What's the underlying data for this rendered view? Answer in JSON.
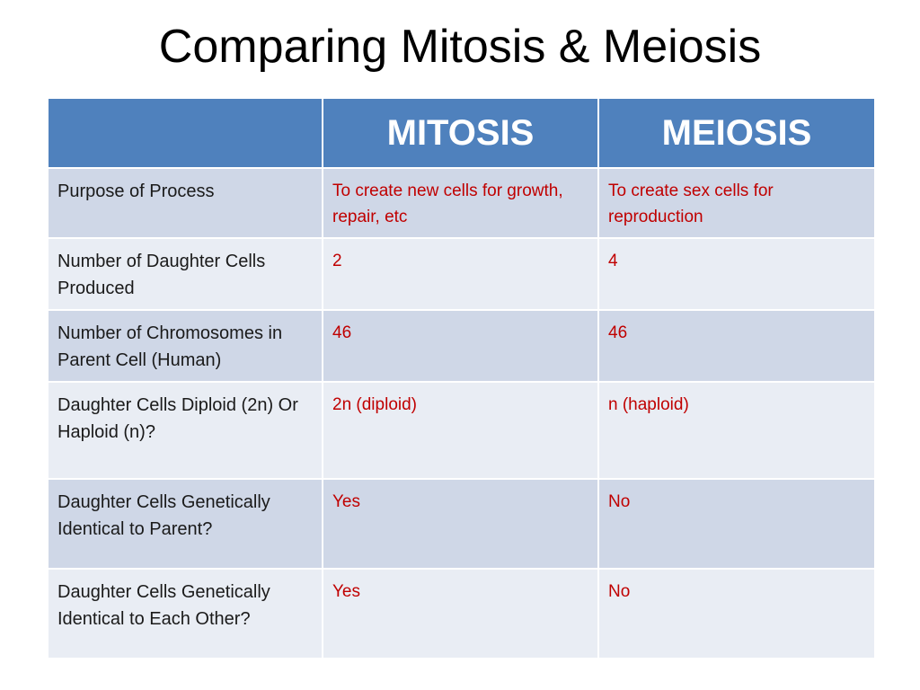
{
  "title": "Comparing Mitosis & Meiosis",
  "table": {
    "headers": [
      "",
      "MITOSIS",
      "MEIOSIS"
    ],
    "rows": [
      {
        "label": "Purpose of Process",
        "mitosis": "To create new cells for growth, repair, etc",
        "meiosis": "To create sex cells for reproduction"
      },
      {
        "label": "Number of Daughter Cells Produced",
        "mitosis": "2",
        "meiosis": "4"
      },
      {
        "label": "Number of Chromosomes in Parent Cell (Human)",
        "mitosis": "46",
        "meiosis": "46"
      },
      {
        "label": "Daughter Cells Diploid (2n) Or Haploid (n)?",
        "mitosis": "2n (diploid)",
        "meiosis": "n (haploid)"
      },
      {
        "label": "Daughter Cells Genetically Identical to Parent?",
        "mitosis": "Yes",
        "meiosis": "No"
      },
      {
        "label": "Daughter Cells Genetically Identical to Each Other?",
        "mitosis": "Yes",
        "meiosis": "No"
      }
    ]
  },
  "colors": {
    "header_bg": "#4f81bd",
    "row_dark": "#cfd7e7",
    "row_light": "#e9edf4",
    "value_text": "#c00000"
  }
}
